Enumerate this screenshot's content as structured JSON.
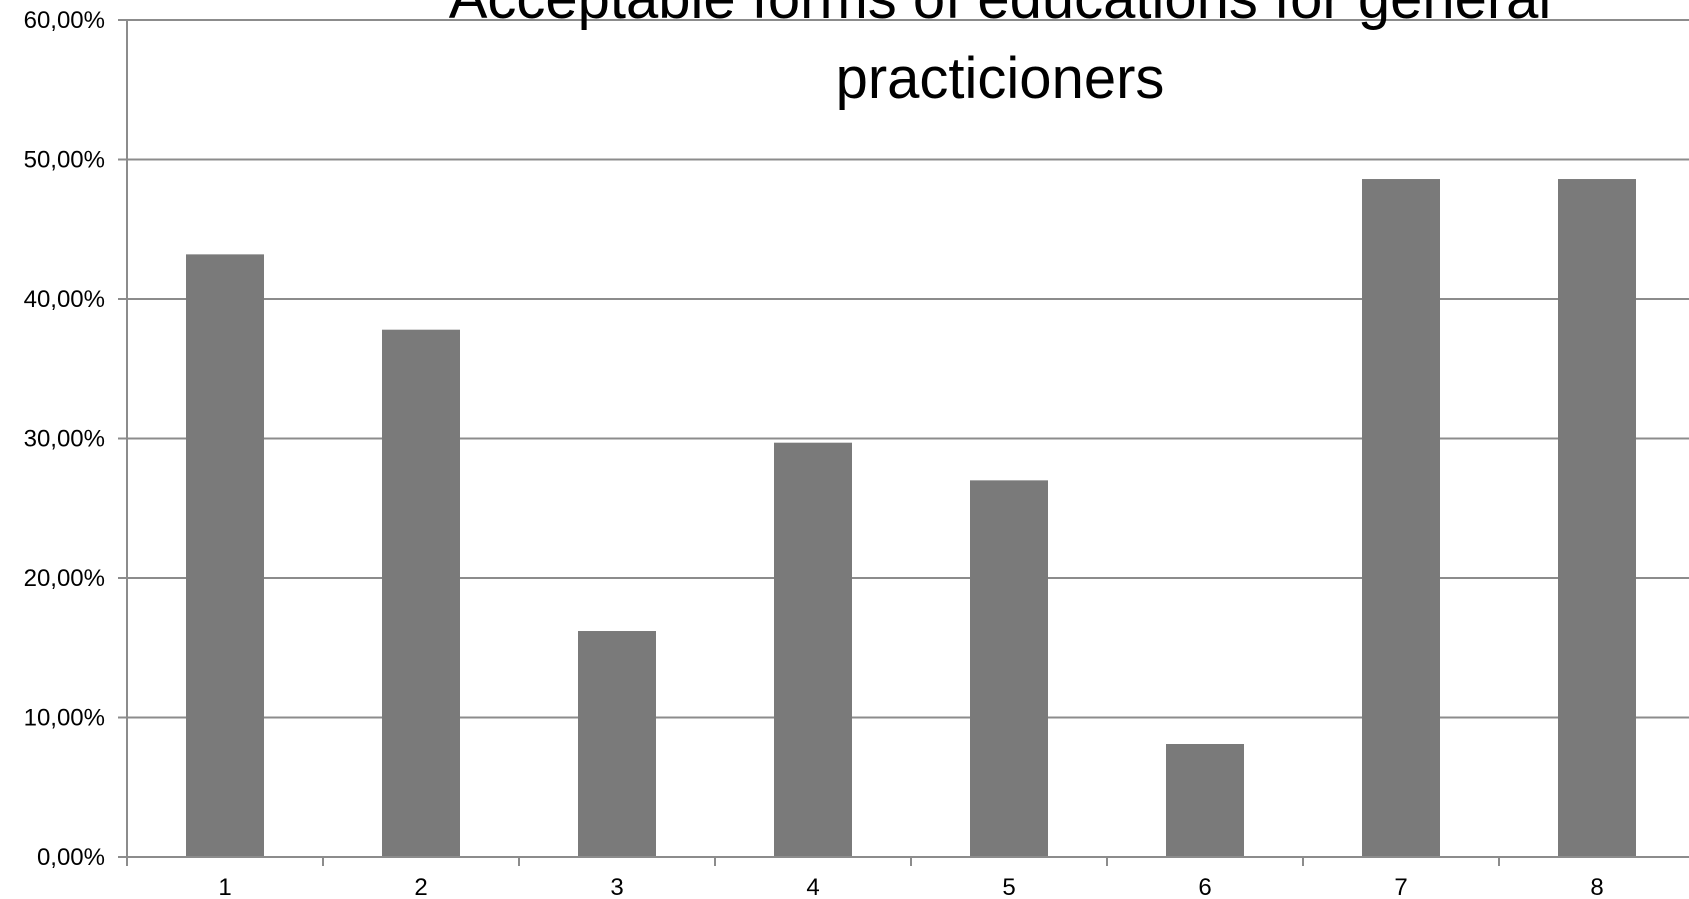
{
  "chart_data": {
    "type": "bar",
    "title": "Acceptable forms of educations for general practicioners",
    "title_lines": [
      "Acceptable forms of educations for general",
      "practicioners"
    ],
    "xlabel": "",
    "ylabel": "",
    "categories": [
      "1",
      "2",
      "3",
      "4",
      "5",
      "6",
      "7",
      "8"
    ],
    "values": [
      43.2,
      37.8,
      16.2,
      29.7,
      27.0,
      8.1,
      48.6,
      48.6
    ],
    "ylim": [
      0,
      60
    ],
    "yticks": [
      0,
      10,
      20,
      30,
      40,
      50,
      60
    ],
    "ytick_labels": [
      "0,00%",
      "10,00%",
      "20,00%",
      "30,00%",
      "40,00%",
      "50,00%",
      "60,00%"
    ],
    "grid": true,
    "legend": "none",
    "colors": {
      "bar": "#7a7a7a",
      "grid": "#8c8c8c",
      "axis": "#8c8c8c",
      "text": "#000000"
    }
  }
}
